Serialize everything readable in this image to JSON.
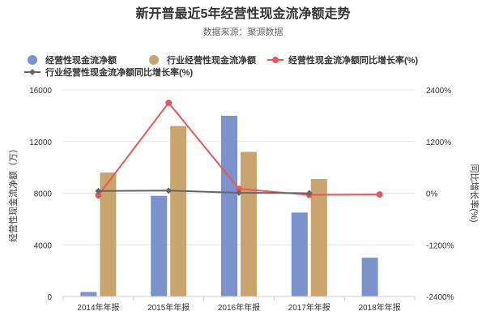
{
  "title": "新开普最近5年经营性现金流净额走势",
  "subtitle": "数据来源：聚源数据",
  "colors": {
    "company_bar": "#7b93cc",
    "industry_bar": "#c9a46c",
    "company_line": "#e8575a",
    "industry_line": "#666666",
    "grid": "#e6e6e6",
    "axis": "#cccccc"
  },
  "chart_data": {
    "type": "bar",
    "title": "新开普最近5年经营性现金流净额走势",
    "subtitle": "数据来源：聚源数据",
    "categories": [
      "2014年年报",
      "2015年年报",
      "2016年年报",
      "2017年年报",
      "2018年年报"
    ],
    "left_axis": {
      "label": "经营性现金流净额（万）",
      "ylim": [
        0,
        16000
      ],
      "ticks": [
        0,
        4000,
        8000,
        12000,
        16000
      ],
      "tick_labels": [
        "0",
        "4000",
        "8000",
        "12000",
        "16000"
      ]
    },
    "right_axis": {
      "label": "同比增长率(%)",
      "ylim": [
        -2400,
        2400
      ],
      "ticks": [
        -2400,
        -1200,
        0,
        1200,
        2400
      ],
      "tick_labels": [
        "-2400%",
        "-1200%",
        "0%",
        "1200%",
        "2400%"
      ]
    },
    "series": [
      {
        "name": "经营性现金流净额",
        "kind": "bar",
        "axis": "left",
        "values": [
          350,
          7800,
          14000,
          6500,
          3000
        ]
      },
      {
        "name": "行业经营性现金流净额",
        "kind": "bar",
        "axis": "left",
        "values": [
          9600,
          13200,
          11200,
          9100,
          null
        ]
      },
      {
        "name": "经营性现金流净额同比增长率(%)",
        "kind": "line",
        "axis": "right",
        "values": [
          -50,
          2100,
          100,
          -40,
          -30
        ]
      },
      {
        "name": "行业经营性现金流净额同比增长率(%)",
        "kind": "line",
        "axis": "right",
        "values": [
          50,
          60,
          10,
          0,
          null
        ]
      }
    ],
    "legend_position": "top",
    "grid": true
  }
}
